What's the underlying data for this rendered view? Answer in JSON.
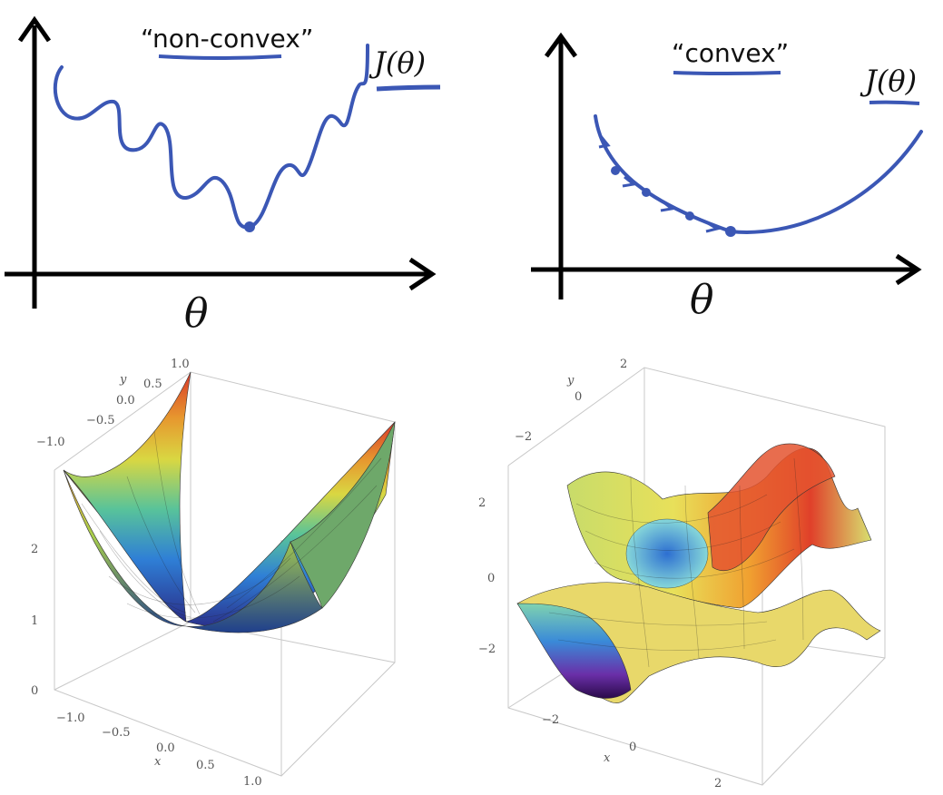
{
  "top_left": {
    "label": "“non-convex”",
    "cost_label": "J(θ)",
    "axis_label": "θ"
  },
  "top_right": {
    "label": "“convex”",
    "cost_label": "J(θ)",
    "axis_label": "θ"
  },
  "bottom_left": {
    "y_axis_label": "y",
    "x_axis_label": "x",
    "y_ticks": [
      "1.0",
      "0.5",
      "0.0",
      "−0.5",
      "−1.0"
    ],
    "z_ticks": [
      "2",
      "1",
      "0"
    ],
    "x_ticks": [
      "−1.0",
      "−0.5",
      "0.0",
      "0.5",
      "1.0"
    ]
  },
  "bottom_right": {
    "y_axis_label": "y",
    "x_axis_label": "x",
    "y_ticks": [
      "2",
      "0",
      "−2"
    ],
    "z_ticks": [
      "2",
      "0",
      "−2"
    ],
    "x_ticks": [
      "−2",
      "0",
      "2"
    ]
  },
  "colors": {
    "ink_blue": "#3b57b5",
    "axis": "#000000",
    "box": "#c8c8c8"
  }
}
